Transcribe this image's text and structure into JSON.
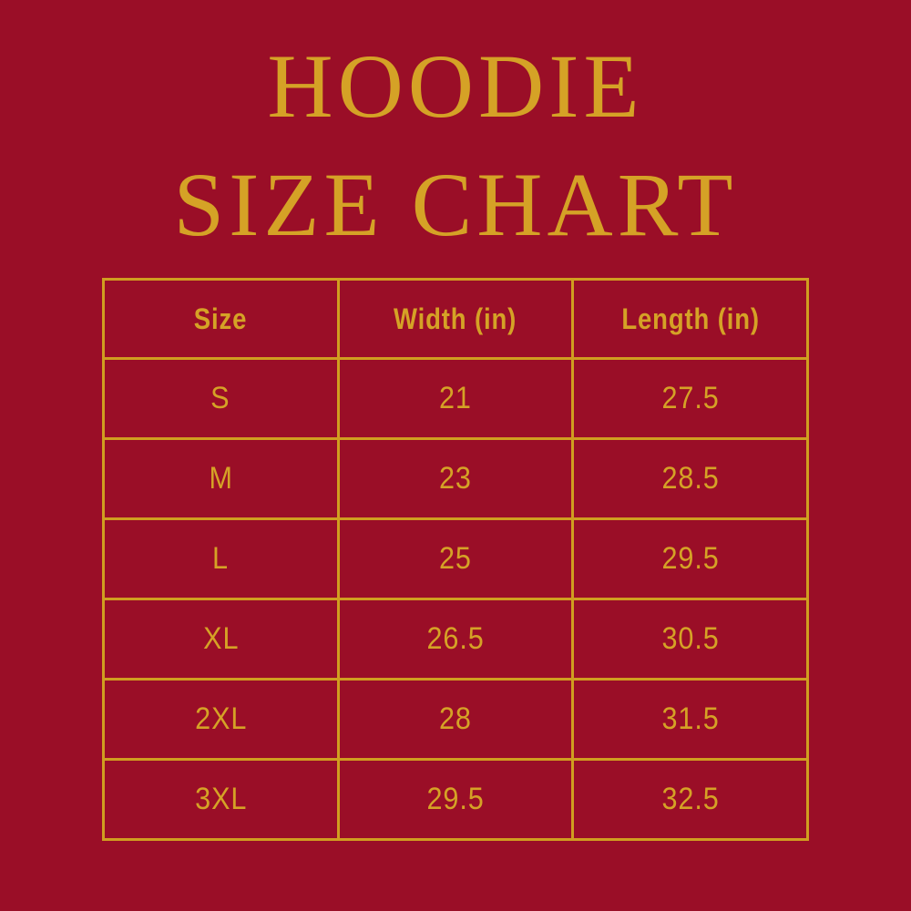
{
  "page": {
    "background_color": "#9A0E27",
    "accent_gold": "#D5A226",
    "border_gold": "#D09E20",
    "title_line1": "HOODIE",
    "title_line2": "SIZE CHART"
  },
  "chart_data": {
    "type": "table",
    "title": "HOODIE SIZE CHART",
    "columns": [
      "Size",
      "Width (in)",
      "Length (in)"
    ],
    "rows": [
      [
        "S",
        "21",
        "27.5"
      ],
      [
        "M",
        "23",
        "28.5"
      ],
      [
        "L",
        "25",
        "29.5"
      ],
      [
        "XL",
        "26.5",
        "30.5"
      ],
      [
        "2XL",
        "28",
        "31.5"
      ],
      [
        "3XL",
        "29.5",
        "32.5"
      ]
    ]
  }
}
